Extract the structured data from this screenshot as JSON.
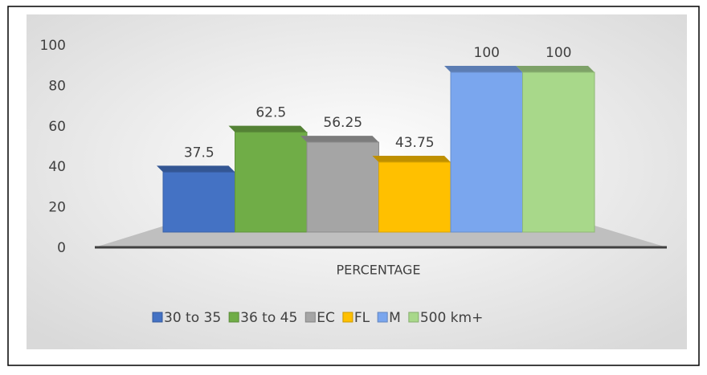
{
  "chart_data": {
    "type": "bar3d",
    "categories": [
      "PERCENTAGE"
    ],
    "series": [
      {
        "name": "30 to 35",
        "color": "#4472c4",
        "values": [
          37.5
        ]
      },
      {
        "name": "36 to 45",
        "color": "#70ad47",
        "values": [
          62.5
        ]
      },
      {
        "name": "EC",
        "color": "#a5a5a5",
        "values": [
          56.25
        ]
      },
      {
        "name": "FL",
        "color": "#ffc000",
        "values": [
          43.75
        ]
      },
      {
        "name": "M",
        "color": "#7aa6ee",
        "values": [
          100
        ]
      },
      {
        "name": "500 km+",
        "color": "#a8d88a",
        "values": [
          100
        ]
      }
    ],
    "ylim": [
      0,
      100
    ],
    "yticks": [
      0,
      20,
      40,
      60,
      80,
      100
    ],
    "legend": "bottom"
  }
}
